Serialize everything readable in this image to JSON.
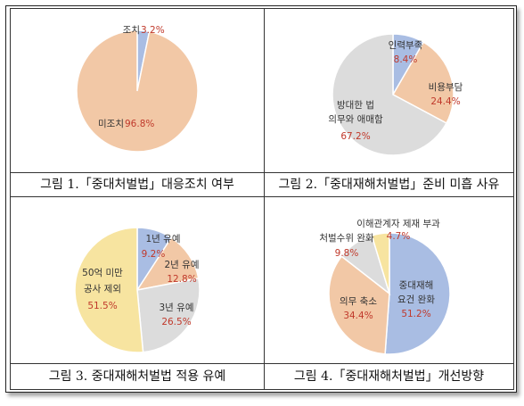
{
  "figures": [
    {
      "caption": "그림 1.「중대처벌법」대응조치 여부"
    },
    {
      "caption": "그림 2.「중대재해처벌법」준비 미흡 사유"
    },
    {
      "caption": "그림 3. 중대재해처벌법 적용 유예"
    },
    {
      "caption": "그림 4.「중대재해처벌법」개선방향"
    }
  ],
  "chart_data": [
    {
      "type": "pie",
      "title": "",
      "slices": [
        {
          "label": "조치",
          "value": 3.2,
          "value_text": "3.2%",
          "color": "#a9bde3"
        },
        {
          "label": "미조치",
          "value": 96.8,
          "value_text": "96.8%",
          "color": "#f2c8a6"
        }
      ]
    },
    {
      "type": "pie",
      "title": "",
      "slices": [
        {
          "label": "인력부족",
          "value": 8.4,
          "value_text": "8.4%",
          "color": "#a9bde3"
        },
        {
          "label": "비용부담",
          "value": 24.4,
          "value_text": "24.4%",
          "color": "#f2c8a6"
        },
        {
          "label": "방대한 법 의무와 애매함",
          "value": 67.2,
          "value_text": "67.2%",
          "color": "#dcdcdc"
        }
      ]
    },
    {
      "type": "pie",
      "title": "",
      "slices": [
        {
          "label": "1년 유예",
          "value": 9.2,
          "value_text": "9.2%",
          "color": "#a9bde3"
        },
        {
          "label": "2년 유예",
          "value": 12.8,
          "value_text": "12.8%",
          "color": "#f2c8a6"
        },
        {
          "label": "3년 유예",
          "value": 26.5,
          "value_text": "26.5%",
          "color": "#dcdcdc"
        },
        {
          "label": "50억 미만 공사 제외",
          "value": 51.5,
          "value_text": "51.5%",
          "color": "#f7e4a0"
        }
      ]
    },
    {
      "type": "pie",
      "title": "",
      "slices": [
        {
          "label": "중대재해 요건 완화",
          "value": 51.2,
          "value_text": "51.2%",
          "color": "#a9bde3"
        },
        {
          "label": "의무 축소",
          "value": 34.4,
          "value_text": "34.4%",
          "color": "#f2c8a6"
        },
        {
          "label": "처벌수위 완화",
          "value": 9.8,
          "value_text": "9.8%",
          "color": "#dcdcdc"
        },
        {
          "label": "이해관계자 제재 부과",
          "value": 4.7,
          "value_text": "4.7%",
          "color": "#f7e4a0"
        }
      ]
    }
  ],
  "colors": {
    "value_text": "#c0392b",
    "label_text": "#333333",
    "slice_edge": "#ffffff",
    "border": "#333333"
  }
}
